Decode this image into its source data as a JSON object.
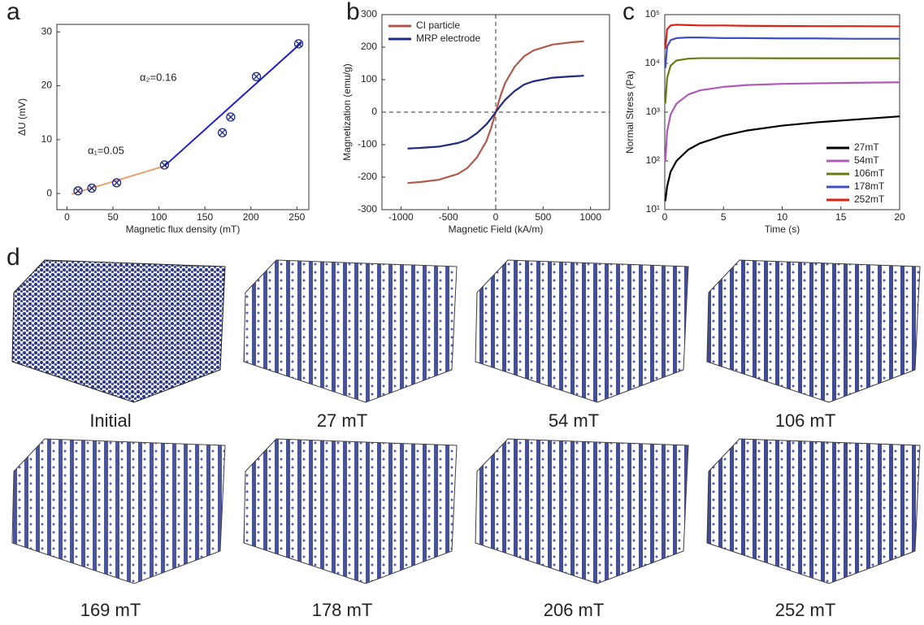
{
  "chart_data": [
    {
      "type": "scatter",
      "panel_label": "a",
      "x_label": "Magnetic flux density (mT)",
      "y_label": "ΔU (mV)",
      "x": [
        12,
        27,
        54,
        106,
        169,
        178,
        206,
        252
      ],
      "values": [
        0.5,
        1,
        2,
        5.3,
        11.3,
        14.2,
        21.7,
        27.8
      ],
      "color": "#1f2a80",
      "lines": [
        {
          "x": [
            5,
            106
          ],
          "values": [
            -0.1,
            5.1
          ],
          "color": "#e8a070"
        },
        {
          "x": [
            106,
            255
          ],
          "values": [
            5.1,
            28
          ],
          "color": "#1f1fd0"
        }
      ],
      "annotations": [
        "α₁=0.05",
        "α₂=0.16"
      ],
      "xlim": [
        -11,
        263
      ],
      "xticks": [
        0,
        50,
        100,
        150,
        200,
        250
      ],
      "ylim": [
        -3,
        31.4
      ],
      "yticks": [
        0,
        10,
        20,
        30
      ]
    },
    {
      "type": "line",
      "panel_label": "b",
      "x_label": "Magnetic Field (kA/m)",
      "y_label": "Magnetization (emu/g)",
      "legend": "upper left",
      "x": [
        -930,
        -800,
        -600,
        -400,
        -300,
        -200,
        -100,
        -50,
        0,
        50,
        100,
        200,
        300,
        400,
        600,
        800,
        930
      ],
      "series": [
        {
          "name": "CI particle",
          "color": "#b0584a",
          "values": [
            -218,
            -215,
            -208,
            -190,
            -172,
            -140,
            -90,
            -50,
            0,
            50,
            90,
            140,
            172,
            190,
            208,
            215,
            218
          ]
        },
        {
          "name": "MRP electrode",
          "color": "#1f2a80",
          "values": [
            -112,
            -110,
            -106,
            -95,
            -85,
            -65,
            -38,
            -20,
            0,
            20,
            38,
            65,
            85,
            95,
            106,
            110,
            112
          ]
        }
      ],
      "xlim": [
        -1200,
        1200
      ],
      "xticks": [
        -1000,
        -500,
        0,
        500,
        1000
      ],
      "ylim": [
        -300,
        300
      ],
      "yticks": [
        -300,
        -200,
        -100,
        0,
        100,
        200,
        300
      ]
    },
    {
      "type": "line",
      "panel_label": "c",
      "x_label": "Time (s)",
      "y_label": "Normal Stress (Pa)",
      "legend": "lower right",
      "log_y": true,
      "x": [
        0.05,
        0.2,
        0.5,
        1,
        2,
        3,
        5,
        7,
        10,
        13,
        16,
        20
      ],
      "series": [
        {
          "name": "27mT",
          "color": "#000000",
          "values": [
            15,
            30,
            60,
            100,
            170,
            230,
            330,
            420,
            530,
            620,
            700,
            820
          ]
        },
        {
          "name": "54mT",
          "color": "#b05ab8",
          "values": [
            100,
            400,
            900,
            1500,
            2300,
            2800,
            3300,
            3600,
            3800,
            3900,
            4000,
            4100
          ]
        },
        {
          "name": "106mT",
          "color": "#6b7a10",
          "values": [
            1500,
            5000,
            9000,
            11500,
            12500,
            12800,
            12800,
            12800,
            12700,
            12700,
            12700,
            12700
          ]
        },
        {
          "name": "178mT",
          "color": "#3d4fc0",
          "values": [
            8000,
            22000,
            30000,
            33000,
            34000,
            34000,
            33000,
            33000,
            32500,
            32500,
            32000,
            32000
          ]
        },
        {
          "name": "252mT",
          "color": "#e02010",
          "values": [
            20000,
            50000,
            60000,
            62000,
            61000,
            60000,
            60000,
            59000,
            58500,
            58000,
            58000,
            57500
          ]
        }
      ],
      "xlim": [
        0,
        20
      ],
      "xticks": [
        0,
        5,
        10,
        15,
        20
      ],
      "ylim": [
        10,
        100000
      ],
      "yticks": [
        {
          "value": 10,
          "label": "10¹"
        },
        {
          "value": 100,
          "label": "10²"
        },
        {
          "value": 1000,
          "label": "10³"
        },
        {
          "value": 10000,
          "label": "10⁴"
        },
        {
          "value": 100000,
          "label": "10⁵"
        }
      ]
    }
  ],
  "panel_d": {
    "label": "d",
    "captions": [
      "Initial",
      "27 mT",
      "54 mT",
      "106 mT",
      "169 mT",
      "178 mT",
      "206 mT",
      "252 mT"
    ]
  }
}
